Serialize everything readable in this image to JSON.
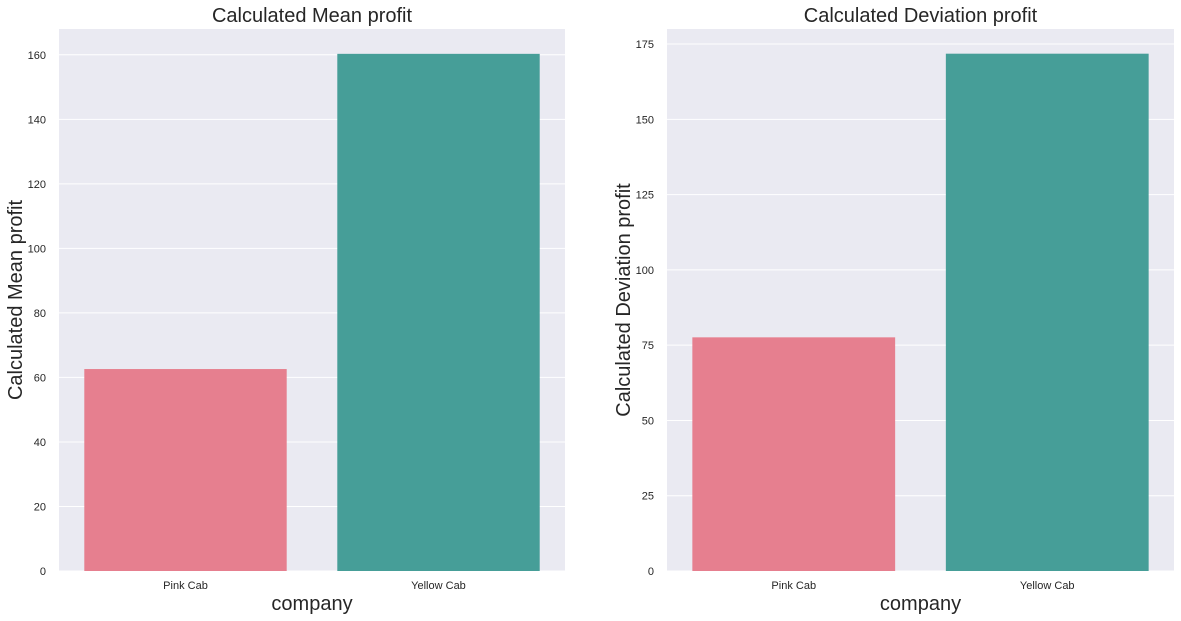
{
  "chart_data": [
    {
      "type": "bar",
      "title": "Calculated Mean profit",
      "xlabel": "company",
      "ylabel": "Calculated Mean profit",
      "categories": [
        "Pink Cab",
        "Yellow Cab"
      ],
      "values": [
        62.6,
        160.3
      ],
      "ylim": [
        0,
        168
      ],
      "yticks": [
        0,
        20,
        40,
        60,
        80,
        100,
        120,
        140,
        160
      ],
      "grid": true,
      "legend": "none",
      "colors": [
        "#e67f8f",
        "#469e98"
      ],
      "background": "#eaeaf2"
    },
    {
      "type": "bar",
      "title": "Calculated Deviation profit",
      "xlabel": "company",
      "ylabel": "Calculated Deviation profit",
      "categories": [
        "Pink Cab",
        "Yellow Cab"
      ],
      "values": [
        77.6,
        171.8
      ],
      "ylim": [
        0,
        180
      ],
      "yticks": [
        0,
        25,
        50,
        75,
        100,
        125,
        150,
        175
      ],
      "grid": true,
      "legend": "none",
      "colors": [
        "#e67f8f",
        "#469e98"
      ],
      "background": "#eaeaf2"
    }
  ]
}
